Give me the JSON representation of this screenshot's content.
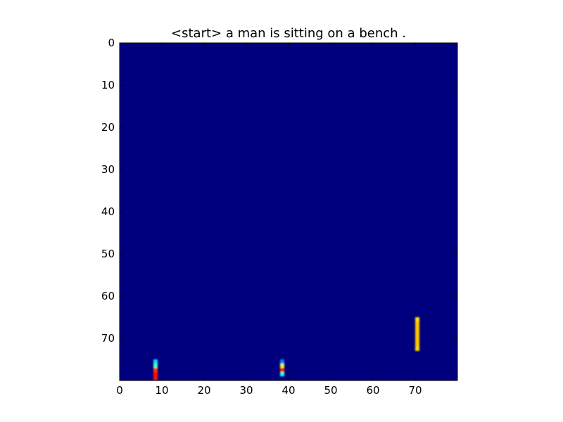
{
  "chart_data": {
    "type": "heatmap",
    "title": "<start> a man is sitting on a bench .",
    "xlabel": "",
    "ylabel": "",
    "xlim": [
      0,
      80
    ],
    "ylim": [
      80,
      0
    ],
    "y_inverted": true,
    "x_ticks": [
      0,
      10,
      20,
      30,
      40,
      50,
      60,
      70
    ],
    "y_ticks": [
      0,
      10,
      20,
      30,
      40,
      50,
      60,
      70
    ],
    "grid": false,
    "colormap": "jet",
    "background_value": 0.0,
    "colors": {
      "background": "#00007f",
      "axes_frame": "#000000"
    },
    "highlights": [
      {
        "x": 8.5,
        "y": 75.5,
        "value": 0.35
      },
      {
        "x": 8.5,
        "y": 76.5,
        "value": 0.45
      },
      {
        "x": 8.5,
        "y": 77.5,
        "value": 0.82
      },
      {
        "x": 8.5,
        "y": 78.5,
        "value": 0.86
      },
      {
        "x": 8.5,
        "y": 79.5,
        "value": 0.86
      },
      {
        "x": 38.5,
        "y": 75.5,
        "value": 0.25
      },
      {
        "x": 38.5,
        "y": 76.5,
        "value": 0.6
      },
      {
        "x": 38.5,
        "y": 77.5,
        "value": 0.85
      },
      {
        "x": 38.5,
        "y": 78.5,
        "value": 0.4
      },
      {
        "x": 70.5,
        "y": 65.5,
        "value": 0.65
      },
      {
        "x": 70.5,
        "y": 66.5,
        "value": 0.68
      },
      {
        "x": 70.5,
        "y": 67.5,
        "value": 0.68
      },
      {
        "x": 70.5,
        "y": 68.5,
        "value": 0.68
      },
      {
        "x": 70.5,
        "y": 69.5,
        "value": 0.68
      },
      {
        "x": 70.5,
        "y": 70.5,
        "value": 0.68
      },
      {
        "x": 70.5,
        "y": 71.5,
        "value": 0.68
      },
      {
        "x": 70.5,
        "y": 72.5,
        "value": 0.66
      }
    ]
  }
}
